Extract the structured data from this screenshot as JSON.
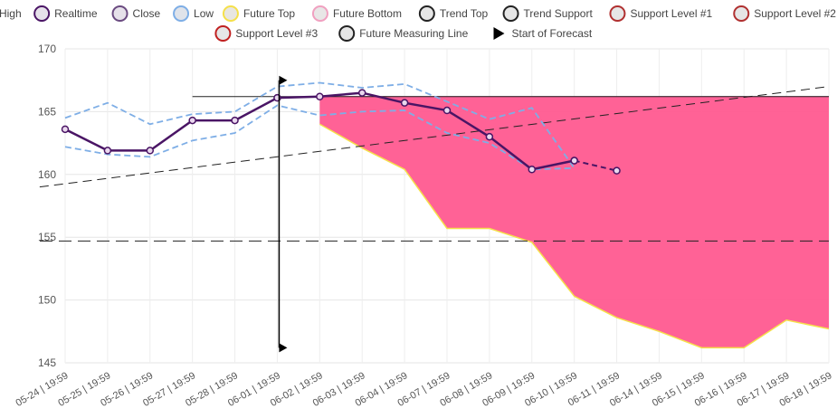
{
  "chart_data": {
    "type": "line",
    "categories": [
      "05-24 | 19:59",
      "05-25 | 19:59",
      "05-26 | 19:59",
      "05-27 | 19:59",
      "05-28 | 19:59",
      "06-01 | 19:59",
      "06-02 | 19:59",
      "06-03 | 19:59",
      "06-04 | 19:59",
      "06-07 | 19:59",
      "06-08 | 19:59",
      "06-09 | 19:59",
      "06-10 | 19:59",
      "06-11 | 19:59",
      "06-14 | 19:59",
      "06-15 | 19:59",
      "06-16 | 19:59",
      "06-17 | 19:59",
      "06-18 | 19:59"
    ],
    "ylim": [
      145,
      170
    ],
    "yticks": [
      145,
      150,
      155,
      160,
      165,
      170
    ],
    "legend": [
      {
        "name": "High",
        "color": "#7eaee6",
        "fill": "#dfe3ea",
        "icon": "circle"
      },
      {
        "name": "Realtime",
        "color": "#4a1565",
        "fill": "#e6e1ea",
        "icon": "circle"
      },
      {
        "name": "Close",
        "color": "#6a4a80",
        "fill": "#e6e1ea",
        "icon": "circle"
      },
      {
        "name": "Low",
        "color": "#7eaee6",
        "fill": "#dfe3ea",
        "icon": "circle"
      },
      {
        "name": "Future Top",
        "color": "#f5e04a",
        "fill": "#e8e6e1",
        "icon": "circle"
      },
      {
        "name": "Future Bottom",
        "color": "#f0a0c0",
        "fill": "#e8e6e6",
        "icon": "circle"
      },
      {
        "name": "Trend Top",
        "color": "#222222",
        "fill": "#e6e6e6",
        "icon": "circle"
      },
      {
        "name": "Trend Support",
        "color": "#222222",
        "fill": "#e6e6e6",
        "icon": "circle"
      },
      {
        "name": "Support Level #1",
        "color": "#b03030",
        "fill": "#e6e6e6",
        "icon": "circle"
      },
      {
        "name": "Support Level #2",
        "color": "#b03030",
        "fill": "#e6e6e6",
        "icon": "circle"
      },
      {
        "name": "Support Level #3",
        "color": "#c02020",
        "fill": "#e6e6e6",
        "icon": "circle"
      },
      {
        "name": "Future Measuring Line",
        "color": "#222222",
        "fill": "#e6e6e6",
        "icon": "circle"
      },
      {
        "name": "Start of Forecast",
        "color": "#000000",
        "fill": "#000000",
        "icon": "triangle"
      }
    ],
    "series": [
      {
        "name": "High",
        "color": "#7eaee6",
        "style": "dashed",
        "x": [
          0,
          1,
          2,
          3,
          4,
          5,
          6,
          7,
          8,
          9,
          10,
          11,
          12
        ],
        "values": [
          164.5,
          165.7,
          164.0,
          164.8,
          165.0,
          167.0,
          167.3,
          166.9,
          167.2,
          165.8,
          164.4,
          165.3,
          160.5
        ]
      },
      {
        "name": "Low",
        "color": "#7eaee6",
        "style": "dashed",
        "x": [
          0,
          1,
          2,
          3,
          4,
          5,
          6,
          7,
          8,
          9,
          10,
          11,
          12
        ],
        "values": [
          162.2,
          161.6,
          161.4,
          162.7,
          163.3,
          165.5,
          164.7,
          165.0,
          165.1,
          163.3,
          162.5,
          160.4,
          160.5
        ]
      },
      {
        "name": "Realtime",
        "color": "#4a1565",
        "style": "solid",
        "markers": true,
        "x": [
          0,
          1,
          2,
          3,
          4,
          5,
          6,
          7,
          8,
          9,
          10,
          11,
          12
        ],
        "values": [
          163.6,
          161.9,
          161.9,
          164.3,
          164.3,
          166.1,
          166.2,
          166.5,
          165.7,
          165.1,
          163.0,
          160.4,
          161.1
        ]
      },
      {
        "name": "Close",
        "color": "#4a1565",
        "style": "dashed",
        "markers": true,
        "x": [
          12,
          13
        ],
        "values": [
          161.1,
          160.3
        ]
      }
    ],
    "future_area": {
      "x": [
        6,
        7,
        8,
        9,
        10,
        11,
        12,
        13,
        14,
        15,
        16,
        17,
        18
      ],
      "top": [
        166.2,
        166.2,
        166.2,
        166.2,
        166.2,
        166.2,
        166.2,
        166.2,
        166.2,
        166.2,
        166.2,
        166.2,
        166.2
      ],
      "bottom": [
        164.0,
        162.1,
        160.4,
        155.7,
        155.7,
        154.6,
        150.3,
        148.6,
        147.5,
        146.2,
        146.2,
        148.4,
        147.7
      ],
      "fill": "#ff5a90",
      "edge": "#f5e04a"
    },
    "trend_top": {
      "x": [
        3,
        18
      ],
      "values": [
        166.2,
        166.2
      ],
      "color": "#222222"
    },
    "trend_support": {
      "x": [
        -0.6,
        18
      ],
      "values": [
        159.0,
        167.0
      ],
      "color": "#222222"
    },
    "support_level": {
      "value": 154.7,
      "color": "#222222"
    },
    "measuring_line": {
      "x": 5,
      "from": 166.2,
      "to": 146.2,
      "color": "#000000"
    },
    "start_of_forecast": {
      "x": 5,
      "value": 167.5
    }
  }
}
